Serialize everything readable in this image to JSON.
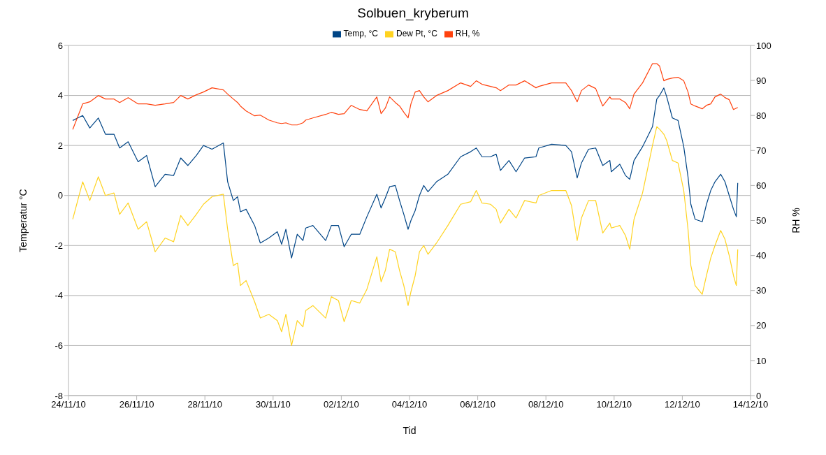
{
  "chart_data": {
    "type": "line",
    "title": "Solbuen_kryberum",
    "xlabel": "Tid",
    "ylabel": "Temperatur °C",
    "y2label": "RH %",
    "x": [
      "--11-24T03:00",
      "--11-24T10:00",
      "--11-24T15:00",
      "--11-24T21:00",
      "--11-25T02:00",
      "--11-25T08:00",
      "--11-25T12:00",
      "--11-25T18:00",
      "--11-26T01:00",
      "--11-26T07:00",
      "--11-26T13:00",
      "--11-26T20:00",
      "--11-27T02:00",
      "--11-27T07:00",
      "--11-27T12:00",
      "--11-27T18:00",
      "--11-27T23:00",
      "--11-28T05:00",
      "--11-28T13:00",
      "--11-28T16:00",
      "--11-28T20:00",
      "--11-28T23:00",
      "--11-29T01:00",
      "--11-29T05:00",
      "--11-29T11:00",
      "--11-29T15:00",
      "--11-29T21:00",
      "--11-30T03:00",
      "--11-30T06:00",
      "--11-30T09:00",
      "--11-30T13:00",
      "--11-30T17:00",
      "--11-30T21:00",
      "--11-30T23:00",
      "--12-01T04:00",
      "--12-01T13:00",
      "--12-01T17:00",
      "--12-01T22:00",
      "--12-02T02:00",
      "--12-02T07:00",
      "--12-02T13:00",
      "--12-02T18:00",
      "--12-03T01:00",
      "--12-03T04:00",
      "--12-03T07:00",
      "--12-03T10:00",
      "--12-03T14:00",
      "--12-03T17:00",
      "--12-03T20:00",
      "--12-03T23:00",
      "--12-04T01:00",
      "--12-04T04:00",
      "--12-04T07:00",
      "--12-04T10:00",
      "--12-04T13:00",
      "--12-04T19:00",
      "--12-05T03:00",
      "--12-05T12:00",
      "--12-05T19:00",
      "--12-05T23:00",
      "--12-06T03:00",
      "--12-06T09:00",
      "--12-06T13:00",
      "--12-06T16:00",
      "--12-06T22:00",
      "--12-07T03:00",
      "--12-07T09:00",
      "--12-07T17:00",
      "--12-07T19:00",
      "--12-08T04:00",
      "--12-08T14:00",
      "--12-08T18:00",
      "--12-08T22:00",
      "--12-09T01:00",
      "--12-09T06:00",
      "--12-09T11:00",
      "--12-09T16:00",
      "--12-09T21:00",
      "--12-09T22:00",
      "--12-10T04:00",
      "--12-10T08:00",
      "--12-10T11:00",
      "--12-10T14:00",
      "--12-10T20:00",
      "--12-11T03:00",
      "--12-11T06:00",
      "--12-11T08:00",
      "--12-11T11:00",
      "--12-11T13:00",
      "--12-11T17:00",
      "--12-11T21:00",
      "--12-12T01:00",
      "--12-12T04:00",
      "--12-12T06:00",
      "--12-12T09:00",
      "--12-12T14:00",
      "--12-12T17:00",
      "--12-12T20:00",
      "--12-12T23:00",
      "--12-13T03:00",
      "--12-13T06:00",
      "--12-13T09:00",
      "--12-13T12:00",
      "--12-13T14:00",
      "--12-13T15:00"
    ],
    "series": [
      {
        "name": "Temp, °C",
        "color": "#004586",
        "values": [
          3.0,
          3.2,
          2.7,
          3.1,
          2.45,
          2.45,
          1.9,
          2.15,
          1.35,
          1.6,
          0.35,
          0.85,
          0.8,
          1.5,
          1.2,
          1.6,
          2.0,
          1.85,
          2.1,
          0.55,
          -0.2,
          -0.05,
          -0.65,
          -0.55,
          -1.2,
          -1.9,
          -1.7,
          -1.45,
          -1.95,
          -1.35,
          -2.5,
          -1.55,
          -1.8,
          -1.3,
          -1.2,
          -1.8,
          -1.2,
          -1.2,
          -2.05,
          -1.55,
          -1.55,
          -0.85,
          0.05,
          -0.5,
          -0.1,
          0.35,
          0.4,
          -0.2,
          -0.75,
          -1.35,
          -1.0,
          -0.6,
          0,
          0.4,
          0.15,
          0.55,
          0.85,
          1.55,
          1.75,
          1.9,
          1.55,
          1.55,
          1.65,
          1.0,
          1.4,
          0.95,
          1.5,
          1.55,
          1.9,
          2.05,
          2.0,
          1.75,
          0.7,
          1.3,
          1.85,
          1.9,
          1.2,
          1.4,
          0.95,
          1.25,
          0.8,
          0.65,
          1.4,
          1.95,
          2.75,
          3.85,
          4.0,
          4.3,
          3.95,
          3.1,
          3.0,
          1.95,
          0.75,
          -0.35,
          -0.95,
          -1.05,
          -0.35,
          0.2,
          0.55,
          0.85,
          0.55,
          0,
          -0.55,
          -0.85,
          0.5
        ]
      },
      {
        "name": "Dew Pt, °C",
        "color": "#ffd320",
        "values": [
          -0.95,
          0.55,
          -0.2,
          0.75,
          0,
          0.1,
          -0.75,
          -0.3,
          -1.35,
          -1.05,
          -2.25,
          -1.7,
          -1.85,
          -0.8,
          -1.2,
          -0.75,
          -0.35,
          -0.05,
          0.05,
          -1.35,
          -2.8,
          -2.7,
          -3.6,
          -3.4,
          -4.25,
          -4.9,
          -4.75,
          -5.0,
          -5.45,
          -4.75,
          -6.0,
          -5.0,
          -5.25,
          -4.6,
          -4.4,
          -4.9,
          -4.05,
          -4.2,
          -5.05,
          -4.2,
          -4.3,
          -3.75,
          -2.45,
          -3.45,
          -3.0,
          -2.15,
          -2.25,
          -3.0,
          -3.6,
          -4.4,
          -3.85,
          -3.2,
          -2.25,
          -2.0,
          -2.35,
          -1.9,
          -1.2,
          -0.35,
          -0.25,
          0.2,
          -0.3,
          -0.35,
          -0.55,
          -1.1,
          -0.55,
          -0.9,
          -0.2,
          -0.3,
          0,
          0.2,
          0.2,
          -0.4,
          -1.8,
          -0.9,
          -0.2,
          -0.2,
          -1.5,
          -1.1,
          -1.3,
          -1.2,
          -1.6,
          -2.15,
          -0.95,
          0.1,
          2.0,
          2.75,
          2.65,
          2.45,
          2.2,
          1.4,
          1.3,
          0.2,
          -1.35,
          -2.8,
          -3.6,
          -3.95,
          -3.2,
          -2.5,
          -2.0,
          -1.4,
          -1.75,
          -2.4,
          -3.2,
          -3.6,
          -2.15
        ]
      },
      {
        "name": "RH, %",
        "color": "#ff420e",
        "axis": "y2",
        "values": [
          76,
          83.3,
          83.9,
          85.7,
          84.7,
          84.7,
          83.7,
          85.1,
          83.3,
          83.3,
          82.9,
          83.3,
          83.7,
          85.7,
          84.7,
          85.9,
          86.7,
          87.9,
          87.3,
          86.1,
          84.7,
          83.7,
          82.7,
          81.3,
          79.9,
          80.1,
          78.7,
          77.9,
          77.7,
          77.9,
          77.3,
          77.3,
          77.9,
          78.7,
          79.3,
          80.3,
          80.9,
          80.3,
          80.5,
          82.9,
          81.7,
          81.3,
          85.3,
          80.5,
          82.1,
          85.3,
          83.7,
          82.7,
          80.9,
          79.3,
          83.3,
          86.7,
          87.1,
          85.3,
          83.9,
          85.7,
          87.1,
          89.3,
          88.3,
          89.9,
          88.9,
          88.3,
          87.9,
          87.1,
          88.7,
          88.7,
          89.9,
          87.9,
          88.3,
          89.3,
          89.3,
          87.1,
          83.9,
          87.1,
          88.7,
          87.7,
          82.7,
          85.3,
          84.7,
          84.7,
          83.7,
          81.9,
          86.1,
          89.3,
          94.8,
          94.8,
          94.1,
          89.9,
          90.3,
          90.7,
          90.9,
          89.9,
          86.7,
          83.3,
          82.7,
          81.9,
          82.9,
          83.3,
          85.3,
          86.1,
          85.1,
          84.5,
          81.7,
          82.1,
          82.3
        ]
      }
    ],
    "xlim": [
      "--11-24",
      "--12-14"
    ],
    "xticks": [
      {
        "value": "--11-24",
        "label": "24/11/10"
      },
      {
        "value": "--11-26",
        "label": "26/11/10"
      },
      {
        "value": "--11-28",
        "label": "28/11/10"
      },
      {
        "value": "--11-30",
        "label": "30/11/10"
      },
      {
        "value": "--12-02",
        "label": "02/12/10"
      },
      {
        "value": "--12-04",
        "label": "04/12/10"
      },
      {
        "value": "--12-06",
        "label": "06/12/10"
      },
      {
        "value": "--12-08",
        "label": "08/12/10"
      },
      {
        "value": "--12-10",
        "label": "10/12/10"
      },
      {
        "value": "--12-12",
        "label": "12/12/10"
      },
      {
        "value": "--12-14",
        "label": "14/12/10"
      }
    ],
    "ylim": [
      -8,
      6
    ],
    "yticks": [
      -8,
      -6,
      -4,
      -2,
      0,
      2,
      4,
      6
    ],
    "y2lim": [
      0,
      100
    ],
    "y2ticks": [
      0,
      10,
      20,
      30,
      40,
      50,
      60,
      70,
      80,
      90,
      100
    ],
    "grid": "y",
    "legend": "top",
    "marker": "none",
    "line_style": "solid"
  }
}
